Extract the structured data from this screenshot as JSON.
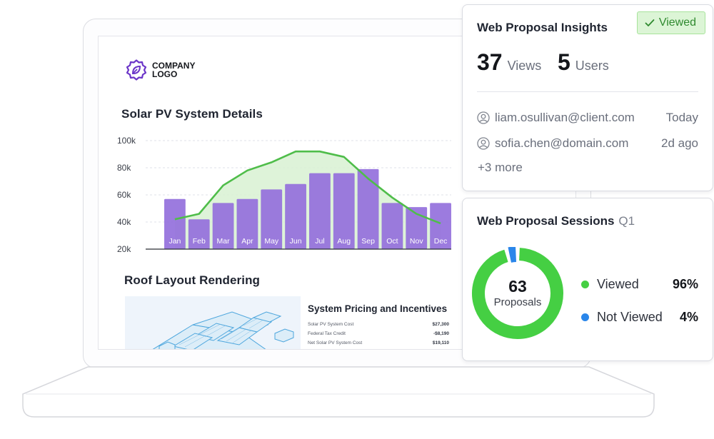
{
  "document": {
    "logo_text": "COMPANY LOGO",
    "solar_heading": "Solar PV System Details",
    "roof_heading": "Roof Layout Rendering",
    "pricing": {
      "title": "System Pricing and Incentives",
      "rows": [
        {
          "label": "Solar PV System Cost",
          "value": "$27,300"
        },
        {
          "label": "Federal Tax Credit",
          "value": "-$8,190"
        },
        {
          "label": "Net Solar PV System Cost",
          "value": "$19,110"
        }
      ]
    }
  },
  "chart_data": {
    "type": "bar",
    "title": "Solar PV System Details",
    "categories": [
      "Jan",
      "Feb",
      "Mar",
      "Apr",
      "May",
      "Jun",
      "Jul",
      "Aug",
      "Sep",
      "Oct",
      "Nov",
      "Dec"
    ],
    "yticks": [
      "20k",
      "40k",
      "60k",
      "80k",
      "100k"
    ],
    "ylim": [
      20000,
      100000
    ],
    "grid": true,
    "series": [
      {
        "kind": "bar",
        "values": [
          57000,
          42000,
          54000,
          57000,
          64000,
          68000,
          76000,
          76000,
          79000,
          54000,
          51000,
          54000
        ]
      },
      {
        "kind": "line",
        "values": [
          42000,
          46000,
          67000,
          78000,
          84000,
          92000,
          92000,
          88000,
          72000,
          58000,
          46000,
          39000
        ]
      }
    ],
    "colors": {
      "bar": "#9470dc",
      "line": "#4fbd4a",
      "area": "#d8f1d2"
    }
  },
  "insights": {
    "title": "Web Proposal Insights",
    "badge": "Viewed",
    "views_count": "37",
    "views_label": "Views",
    "users_count": "5",
    "users_label": "Users",
    "recent_viewers": [
      {
        "email": "liam.osullivan@client.com",
        "time": "Today"
      },
      {
        "email": "sofia.chen@domain.com",
        "time": "2d ago"
      }
    ],
    "more": "+3 more"
  },
  "sessions": {
    "title": "Web Proposal Sessions",
    "period": "Q1",
    "total": "63",
    "total_label": "Proposals",
    "legend": [
      {
        "name": "Viewed",
        "pct": "96%",
        "value": 0.96,
        "color": "#45cf43"
      },
      {
        "name": "Not Viewed",
        "pct": "4%",
        "value": 0.04,
        "color": "#2a86ea"
      }
    ]
  },
  "icons": {
    "logo": "badge-leaf-icon",
    "check": "check-icon",
    "user": "user-circle-icon"
  }
}
